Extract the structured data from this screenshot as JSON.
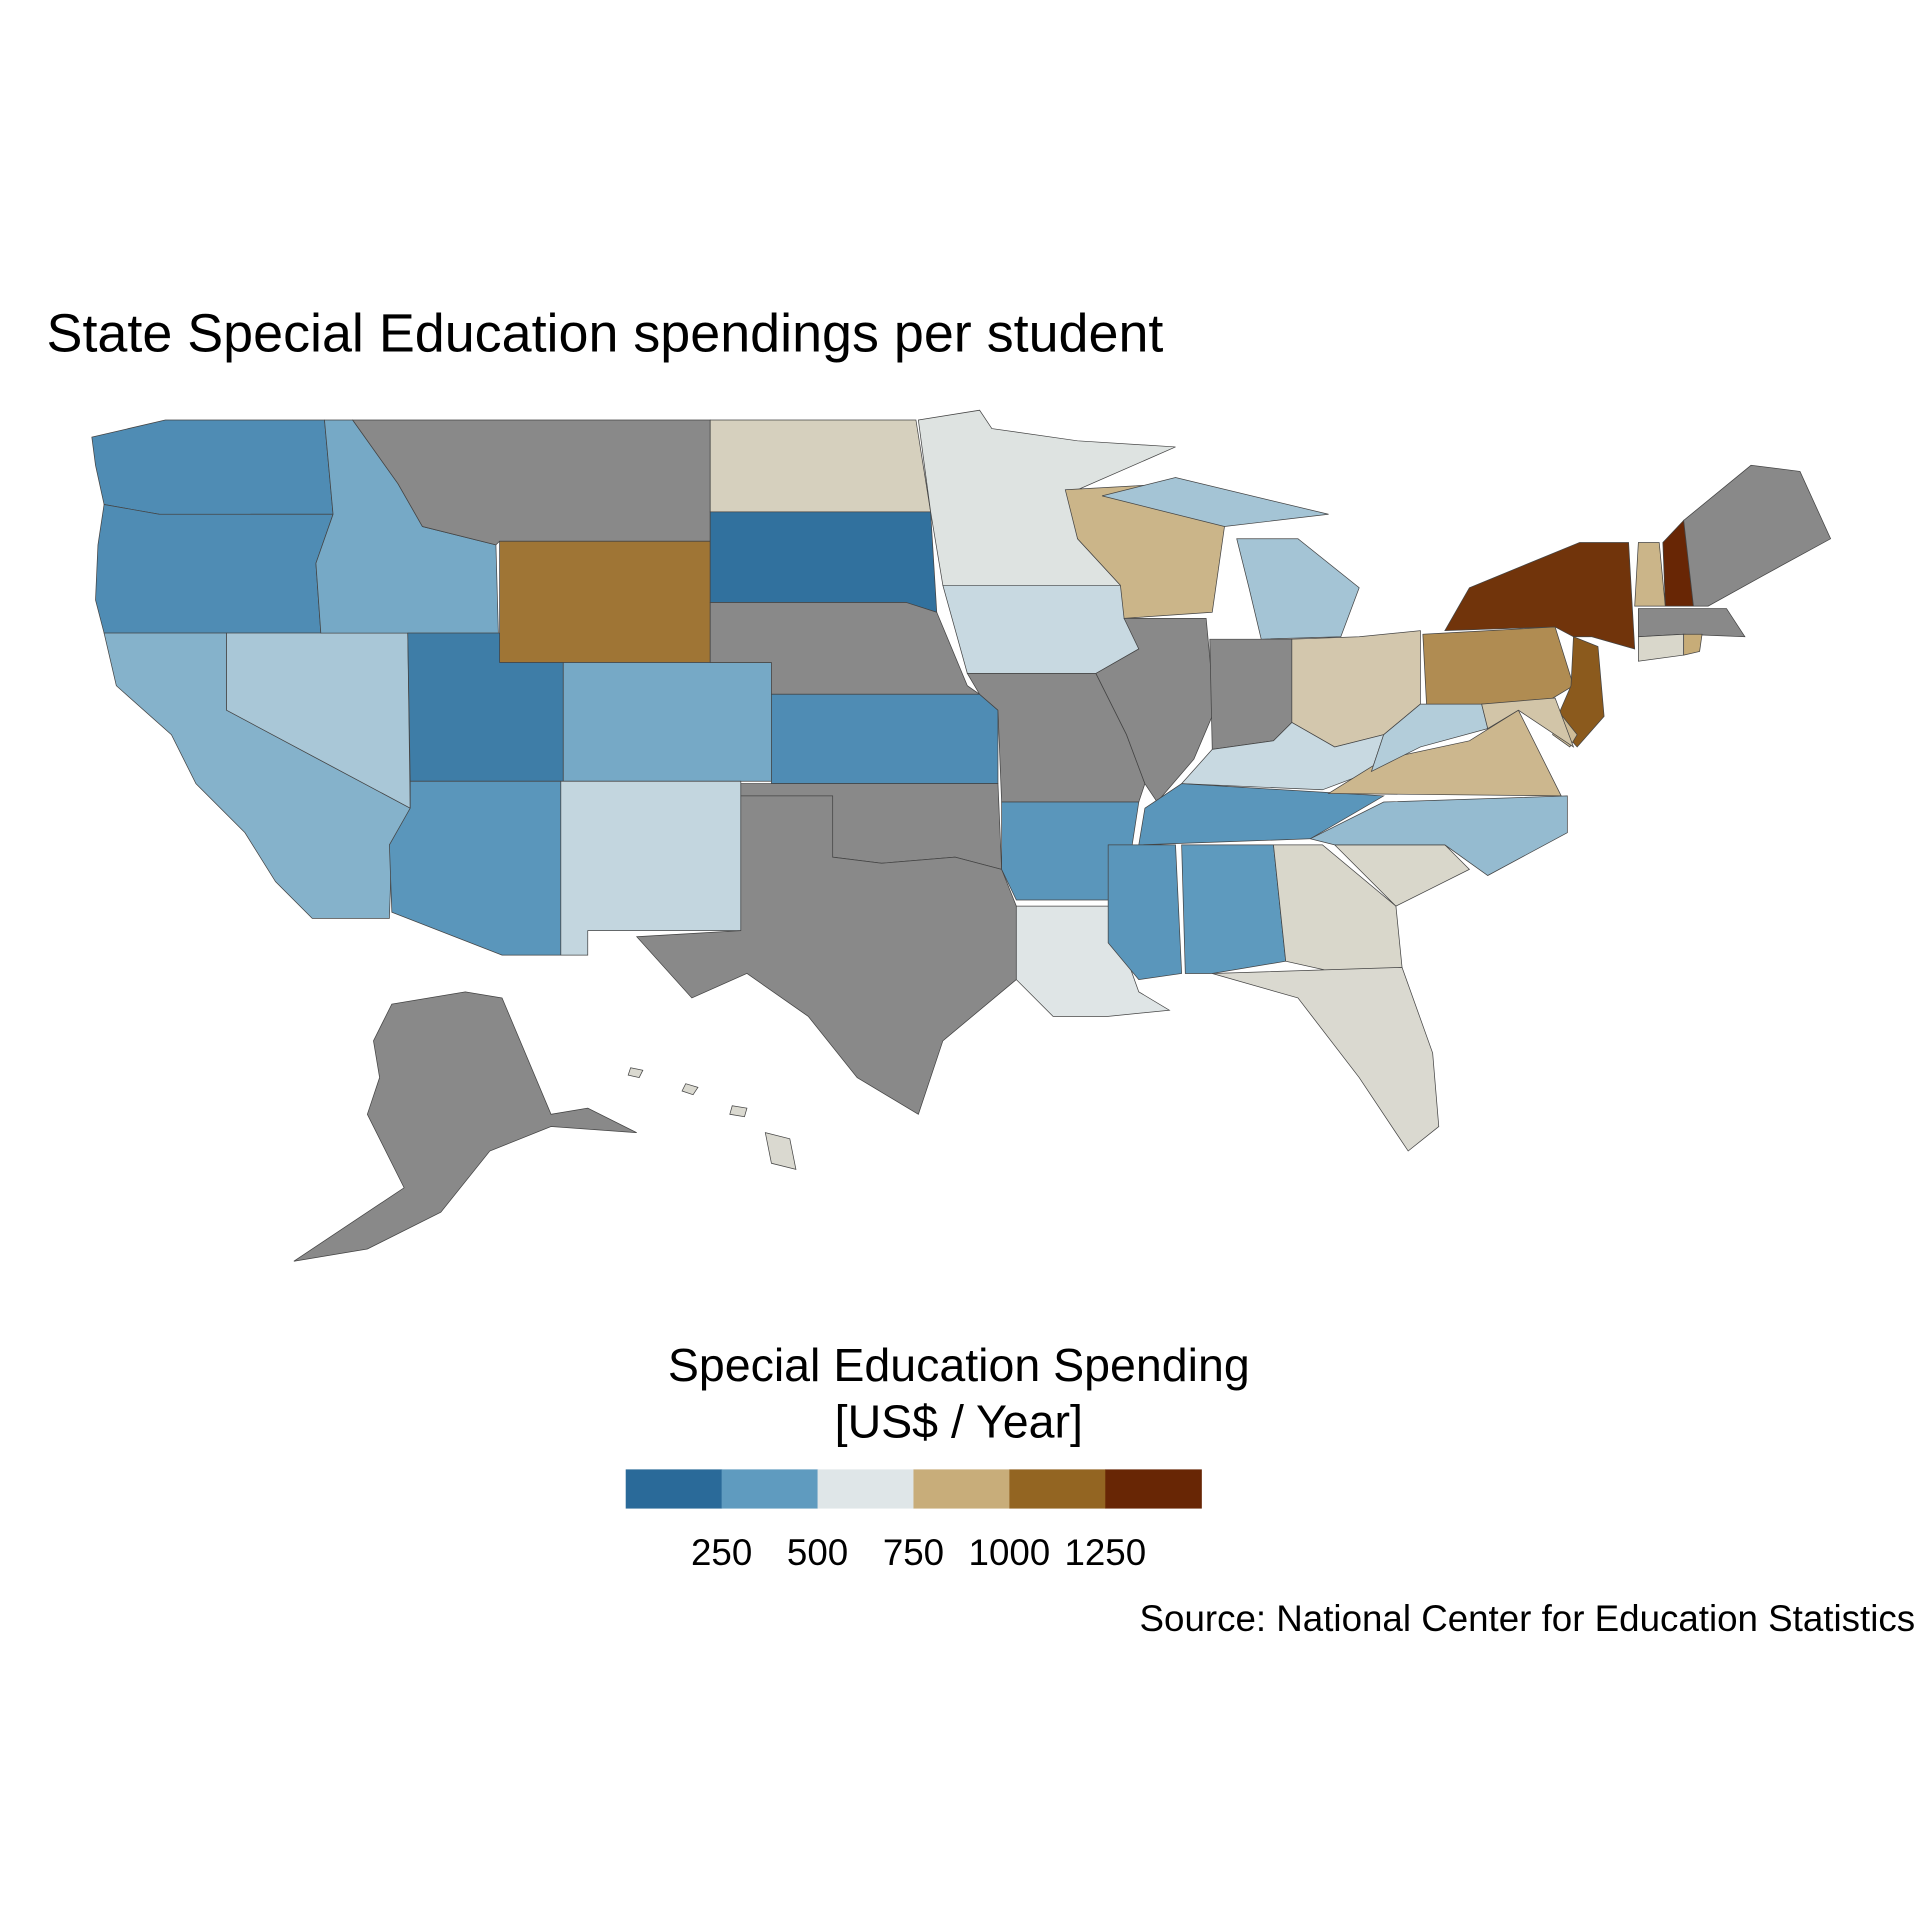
{
  "chart_data": {
    "type": "choropleth",
    "title": "State Special Education spendings per student",
    "legend": {
      "title": [
        "Special Education Spending",
        "[US$ / Year]"
      ],
      "range": [
        0,
        1500
      ],
      "ticks": [
        250,
        500,
        750,
        1000,
        1250
      ],
      "colors": [
        "#2a6a99",
        "#5f9bbf",
        "#dfe6e8",
        "#c8ad7a",
        "#936522",
        "#682605"
      ]
    },
    "na_color": "#898989",
    "source": "Source: National Center for Education Statistics",
    "values": [
      300,
      300,
      450,
      520,
      420,
      null,
      1070,
      220,
      420,
      350,
      570,
      720,
      160,
      null,
      300,
      null,
      null,
      640,
      580,
      null,
      350,
      630,
      840,
      null,
      null,
      510,
      760,
      580,
      350,
      350,
      370,
      690,
      680,
      690,
      480,
      830,
      540,
      990,
      1320,
      840,
      1450,
      null,
      null,
      690,
      880,
      1170,
      810,
      770,
      null,
      680
    ]
  }
}
